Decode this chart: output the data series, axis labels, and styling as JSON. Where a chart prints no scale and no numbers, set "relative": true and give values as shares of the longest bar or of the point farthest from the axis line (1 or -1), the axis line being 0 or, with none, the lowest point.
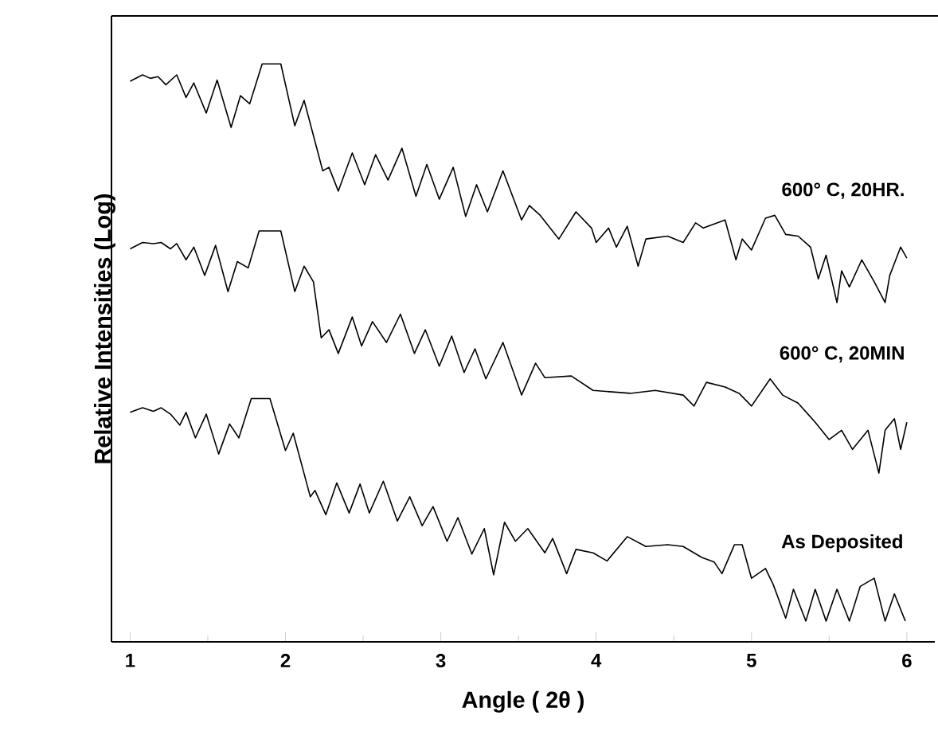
{
  "chart_data": {
    "type": "line",
    "relative": true,
    "xlabel": "Angle  ( 2θ )",
    "ylabel": "Relative Intensities (Log)",
    "xlim": [
      0.88,
      6.18
    ],
    "xticks": [
      1,
      2,
      3,
      4,
      5,
      6
    ],
    "marker": "none",
    "line_style": "solid",
    "series": [
      {
        "name": "600° C, 20HR.",
        "color": "#000000",
        "x": [
          1.0,
          1.08,
          1.13,
          1.18,
          1.23,
          1.3,
          1.36,
          1.41,
          1.49,
          1.56,
          1.65,
          1.71,
          1.77,
          1.85,
          1.97,
          2.06,
          2.12,
          2.24,
          2.28,
          2.34,
          2.43,
          2.51,
          2.58,
          2.66,
          2.75,
          2.84,
          2.91,
          2.99,
          3.08,
          3.16,
          3.23,
          3.3,
          3.4,
          3.52,
          3.57,
          3.64,
          3.76,
          3.87,
          3.97,
          4.0,
          4.08,
          4.13,
          4.2,
          4.27,
          4.32,
          4.46,
          4.56,
          4.64,
          4.69,
          4.83,
          4.9,
          4.94,
          5.0,
          5.09,
          5.15,
          5.22,
          5.3,
          5.38,
          5.43,
          5.48,
          5.55,
          5.58,
          5.63,
          5.71,
          5.79,
          5.86,
          5.89,
          5.96,
          6.0
        ],
        "values": [
          0.97,
          0.981,
          0.975,
          0.978,
          0.964,
          0.981,
          0.942,
          0.967,
          0.915,
          0.972,
          0.89,
          0.945,
          0.931,
          1.0,
          1.0,
          0.893,
          0.937,
          0.815,
          0.821,
          0.78,
          0.846,
          0.791,
          0.843,
          0.799,
          0.854,
          0.771,
          0.826,
          0.766,
          0.821,
          0.736,
          0.791,
          0.744,
          0.815,
          0.73,
          0.755,
          0.738,
          0.697,
          0.744,
          0.716,
          0.691,
          0.716,
          0.683,
          0.719,
          0.65,
          0.697,
          0.702,
          0.691,
          0.725,
          0.716,
          0.73,
          0.661,
          0.697,
          0.678,
          0.733,
          0.738,
          0.705,
          0.702,
          0.683,
          0.628,
          0.669,
          0.587,
          0.642,
          0.614,
          0.661,
          0.623,
          0.587,
          0.634,
          0.683,
          0.664
        ]
      },
      {
        "name": "600° C, 20MIN",
        "color": "#000000",
        "x": [
          1.0,
          1.08,
          1.15,
          1.2,
          1.26,
          1.3,
          1.36,
          1.41,
          1.48,
          1.55,
          1.63,
          1.69,
          1.76,
          1.83,
          1.97,
          2.06,
          2.12,
          2.18,
          2.23,
          2.28,
          2.34,
          2.43,
          2.49,
          2.56,
          2.65,
          2.74,
          2.83,
          2.9,
          2.99,
          3.07,
          3.15,
          3.22,
          3.29,
          3.4,
          3.52,
          3.61,
          3.67,
          3.84,
          3.98,
          4.22,
          4.38,
          4.56,
          4.63,
          4.71,
          4.83,
          4.92,
          5.0,
          5.12,
          5.2,
          5.3,
          5.41,
          5.5,
          5.58,
          5.65,
          5.75,
          5.82,
          5.86,
          5.92,
          5.96,
          6.0
        ],
        "values": [
          0.68,
          0.691,
          0.689,
          0.691,
          0.68,
          0.689,
          0.661,
          0.683,
          0.634,
          0.686,
          0.606,
          0.658,
          0.647,
          0.711,
          0.711,
          0.606,
          0.65,
          0.623,
          0.526,
          0.54,
          0.499,
          0.562,
          0.512,
          0.554,
          0.518,
          0.567,
          0.499,
          0.54,
          0.477,
          0.529,
          0.466,
          0.507,
          0.455,
          0.518,
          0.427,
          0.482,
          0.457,
          0.46,
          0.435,
          0.43,
          0.435,
          0.427,
          0.408,
          0.449,
          0.441,
          0.43,
          0.408,
          0.455,
          0.427,
          0.413,
          0.38,
          0.35,
          0.366,
          0.333,
          0.366,
          0.292,
          0.366,
          0.386,
          0.333,
          0.38
        ]
      },
      {
        "name": "As Deposited",
        "color": "#000000",
        "x": [
          1.0,
          1.08,
          1.15,
          1.2,
          1.26,
          1.32,
          1.36,
          1.42,
          1.49,
          1.57,
          1.64,
          1.7,
          1.78,
          1.9,
          2.0,
          2.05,
          2.16,
          2.19,
          2.26,
          2.33,
          2.41,
          2.48,
          2.54,
          2.63,
          2.72,
          2.8,
          2.88,
          2.95,
          3.04,
          3.11,
          3.2,
          3.28,
          3.34,
          3.41,
          3.48,
          3.56,
          3.67,
          3.72,
          3.81,
          3.87,
          3.98,
          4.07,
          4.2,
          4.32,
          4.46,
          4.56,
          4.68,
          4.76,
          4.81,
          4.89,
          4.94,
          5.0,
          5.09,
          5.14,
          5.22,
          5.27,
          5.35,
          5.41,
          5.48,
          5.55,
          5.63,
          5.7,
          5.79,
          5.86,
          5.92,
          5.99
        ],
        "values": [
          0.397,
          0.405,
          0.399,
          0.405,
          0.394,
          0.375,
          0.397,
          0.353,
          0.394,
          0.325,
          0.377,
          0.353,
          0.421,
          0.421,
          0.331,
          0.361,
          0.251,
          0.262,
          0.22,
          0.275,
          0.223,
          0.273,
          0.223,
          0.278,
          0.209,
          0.251,
          0.201,
          0.234,
          0.174,
          0.215,
          0.152,
          0.196,
          0.116,
          0.207,
          0.174,
          0.196,
          0.154,
          0.179,
          0.118,
          0.16,
          0.154,
          0.14,
          0.182,
          0.165,
          0.168,
          0.165,
          0.146,
          0.138,
          0.118,
          0.168,
          0.168,
          0.11,
          0.127,
          0.099,
          0.041,
          0.091,
          0.036,
          0.091,
          0.036,
          0.091,
          0.036,
          0.096,
          0.11,
          0.036,
          0.083,
          0.036
        ]
      }
    ]
  }
}
